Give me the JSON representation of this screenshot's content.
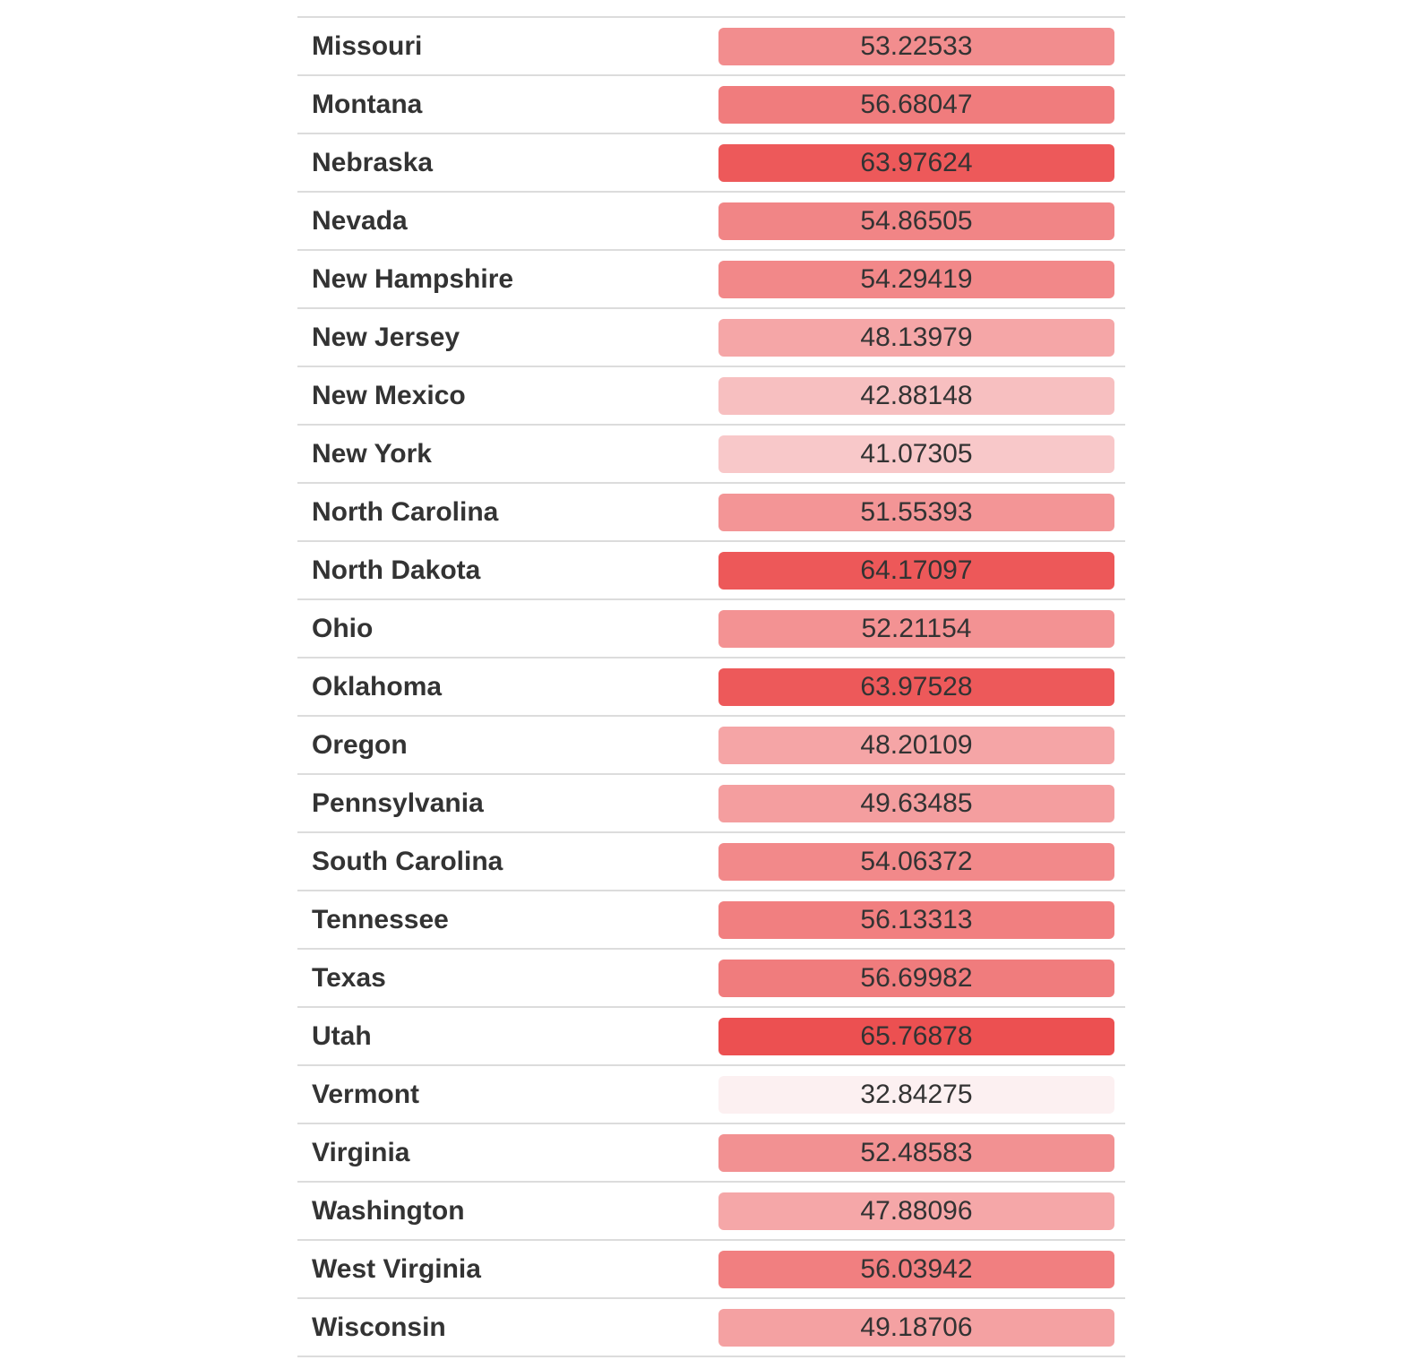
{
  "chart_data": {
    "type": "table",
    "color_scale": {
      "domain": [
        32.84275,
        65.76878
      ],
      "low_color": "#fcf0f1",
      "high_color": "#ec5051"
    },
    "rows": [
      {
        "state": "Missouri",
        "value": 53.22533
      },
      {
        "state": "Montana",
        "value": 56.68047
      },
      {
        "state": "Nebraska",
        "value": 63.97624
      },
      {
        "state": "Nevada",
        "value": 54.86505
      },
      {
        "state": "New Hampshire",
        "value": 54.29419
      },
      {
        "state": "New Jersey",
        "value": 48.13979
      },
      {
        "state": "New Mexico",
        "value": 42.88148
      },
      {
        "state": "New York",
        "value": 41.07305
      },
      {
        "state": "North Carolina",
        "value": 51.55393
      },
      {
        "state": "North Dakota",
        "value": 64.17097
      },
      {
        "state": "Ohio",
        "value": 52.21154
      },
      {
        "state": "Oklahoma",
        "value": 63.97528
      },
      {
        "state": "Oregon",
        "value": 48.20109
      },
      {
        "state": "Pennsylvania",
        "value": 49.63485
      },
      {
        "state": "South Carolina",
        "value": 54.06372
      },
      {
        "state": "Tennessee",
        "value": 56.13313
      },
      {
        "state": "Texas",
        "value": 56.69982
      },
      {
        "state": "Utah",
        "value": 65.76878
      },
      {
        "state": "Vermont",
        "value": 32.84275
      },
      {
        "state": "Virginia",
        "value": 52.48583
      },
      {
        "state": "Washington",
        "value": 47.88096
      },
      {
        "state": "West Virginia",
        "value": 56.03942
      },
      {
        "state": "Wisconsin",
        "value": 49.18706
      }
    ]
  }
}
